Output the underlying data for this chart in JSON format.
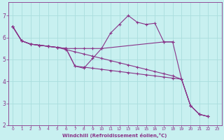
{
  "xlabel": "Windchill (Refroidissement éolien,°C)",
  "bg_color": "#c8f0f0",
  "line_color": "#883388",
  "grid_color": "#aadddd",
  "xlim": [
    -0.5,
    23.5
  ],
  "ylim": [
    2,
    7.6
  ],
  "yticks": [
    2,
    3,
    4,
    5,
    6,
    7
  ],
  "xticks": [
    0,
    1,
    2,
    3,
    4,
    5,
    6,
    7,
    8,
    9,
    10,
    11,
    12,
    13,
    14,
    15,
    16,
    17,
    18,
    19,
    20,
    21,
    22,
    23
  ],
  "line1_x": [
    0,
    1,
    2,
    3,
    4,
    5,
    6,
    7,
    8,
    9,
    10,
    11,
    12,
    13,
    14,
    15,
    16,
    17,
    18,
    19,
    20,
    21,
    22
  ],
  "line1_y": [
    6.5,
    5.85,
    5.7,
    5.65,
    5.6,
    5.55,
    5.5,
    4.7,
    4.6,
    5.05,
    5.5,
    6.2,
    6.6,
    7.0,
    6.7,
    6.6,
    6.65,
    5.8,
    5.8,
    4.1,
    2.9,
    2.5,
    2.4
  ],
  "line2_x": [
    0,
    1,
    2,
    3,
    4,
    5,
    6,
    7,
    8,
    9,
    10,
    11,
    12,
    13,
    14,
    15,
    16,
    17,
    18,
    19,
    20,
    21,
    22
  ],
  "line2_y": [
    6.5,
    5.85,
    5.7,
    5.65,
    5.6,
    5.55,
    5.45,
    5.35,
    5.25,
    5.15,
    5.05,
    4.95,
    4.85,
    4.75,
    4.65,
    4.55,
    4.45,
    4.35,
    4.25,
    4.1,
    2.9,
    2.5,
    2.4
  ],
  "line3_x": [
    0,
    1,
    2,
    3,
    4,
    5,
    6,
    7,
    8,
    9,
    10,
    11,
    12,
    13,
    14,
    15,
    16,
    17,
    18,
    19,
    20,
    21,
    22
  ],
  "line3_y": [
    6.5,
    5.85,
    5.7,
    5.65,
    5.6,
    5.55,
    5.5,
    4.7,
    4.65,
    4.6,
    4.55,
    4.5,
    4.45,
    4.4,
    4.35,
    4.3,
    4.25,
    4.2,
    4.15,
    4.1,
    2.9,
    2.5,
    2.4
  ],
  "line4_x": [
    0,
    1,
    2,
    3,
    4,
    5,
    6,
    7,
    8,
    9,
    10,
    17,
    18
  ],
  "line4_y": [
    6.5,
    5.85,
    5.7,
    5.65,
    5.6,
    5.55,
    5.5,
    5.5,
    5.5,
    5.5,
    5.5,
    5.8,
    5.8
  ]
}
